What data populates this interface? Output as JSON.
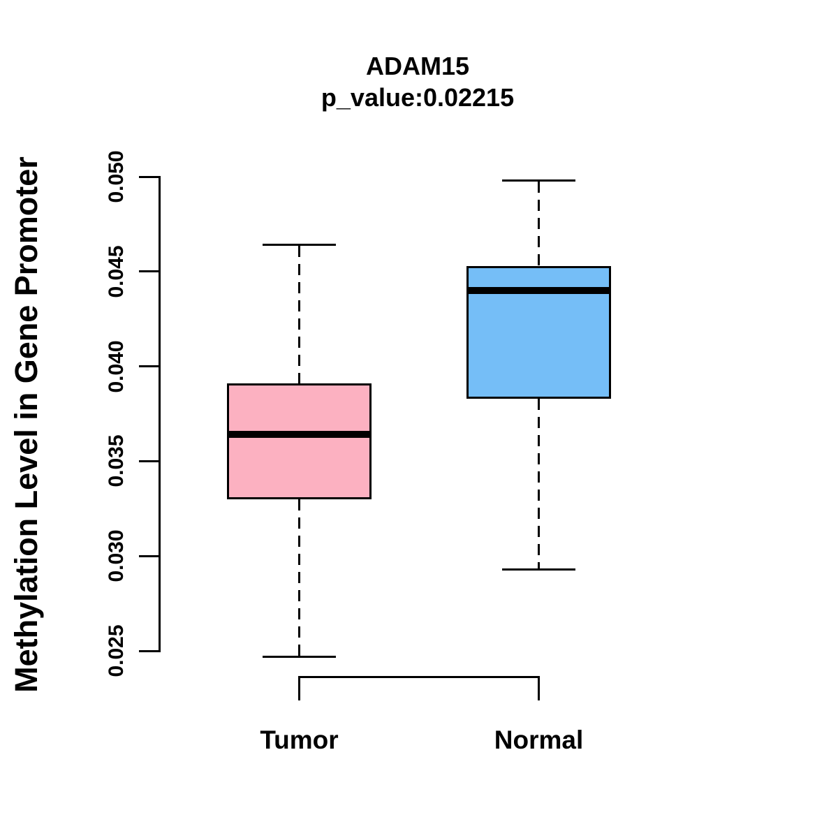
{
  "figure": {
    "background_color": "#FFFFFF",
    "foreground_color": "#000000"
  },
  "chart_data": {
    "type": "boxplot",
    "title": "ADAM15",
    "subtitle": "p_value:0.02215",
    "ylabel": "Methylation Level in Gene Promoter",
    "xlabel": "",
    "categories": [
      "Tumor",
      "Normal"
    ],
    "ylim": [
      0.025,
      0.05
    ],
    "yticks": [
      0.025,
      0.03,
      0.035,
      0.04,
      0.045,
      0.05
    ],
    "ytick_labels": [
      "0.025",
      "0.030",
      "0.035",
      "0.040",
      "0.045",
      "0.050"
    ],
    "grid": false,
    "legend": "none",
    "whisker_style": "dashed",
    "series": [
      {
        "name": "Tumor",
        "fill_color": "#FCB1C1",
        "whisker_low": 0.0247,
        "q1": 0.033,
        "median": 0.0364,
        "q3": 0.0391,
        "whisker_high": 0.0464
      },
      {
        "name": "Normal",
        "fill_color": "#75BEF7",
        "whisker_low": 0.0293,
        "q1": 0.0383,
        "median": 0.044,
        "q3": 0.0453,
        "whisker_high": 0.0498
      }
    ]
  }
}
